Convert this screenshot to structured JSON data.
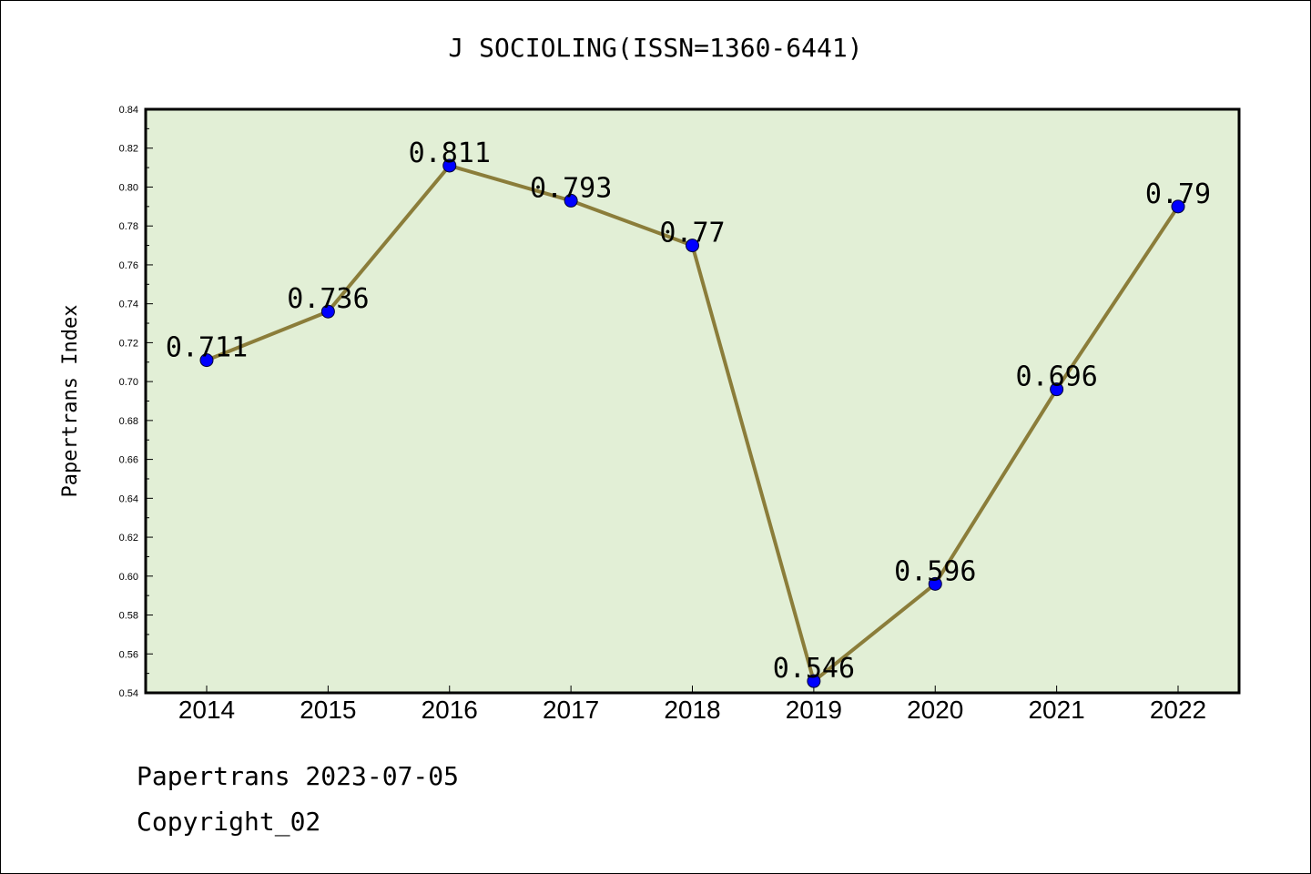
{
  "title": "J SOCIOLING(ISSN=1360-6441)",
  "footer": {
    "line1": "Papertrans 2023-07-05",
    "line2": "Copyright_02"
  },
  "colors": {
    "plot_bg": "#e2efd6",
    "line": "#8b7d3a",
    "marker": "#0000ff"
  },
  "chart_data": {
    "type": "line",
    "title": "J SOCIOLING(ISSN=1360-6441)",
    "xlabel": "",
    "ylabel": "Papertrans Index",
    "categories": [
      "2014",
      "2015",
      "2016",
      "2017",
      "2018",
      "2019",
      "2020",
      "2021",
      "2022"
    ],
    "values": [
      0.711,
      0.736,
      0.811,
      0.793,
      0.77,
      0.546,
      0.596,
      0.696,
      0.79
    ],
    "data_labels": [
      "0.711",
      "0.736",
      "0.811",
      "0.793",
      "0.77",
      "0.546",
      "0.596",
      "0.696",
      "0.79"
    ],
    "ylim": [
      0.54,
      0.84
    ],
    "yticks": [
      "0.54",
      "0.56",
      "0.58",
      "0.60",
      "0.62",
      "0.64",
      "0.66",
      "0.68",
      "0.70",
      "0.72",
      "0.74",
      "0.76",
      "0.78",
      "0.80",
      "0.82",
      "0.84"
    ],
    "grid": false,
    "legend": "none"
  }
}
